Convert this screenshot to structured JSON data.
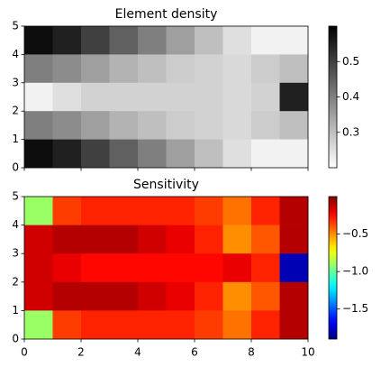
{
  "chart_data": [
    {
      "type": "heatmap",
      "title": "Element density",
      "colormap": "gray_r",
      "xlim": [
        0,
        10
      ],
      "ylim": [
        0,
        5
      ],
      "yticks": [
        0,
        1,
        2,
        3,
        4,
        5
      ],
      "clim": [
        0.2,
        0.6
      ],
      "cticks": [
        0.3,
        0.4,
        0.5
      ],
      "values": [
        [
          0.58,
          0.55,
          0.5,
          0.45,
          0.4,
          0.35,
          0.3,
          0.25,
          0.22,
          0.22
        ],
        [
          0.4,
          0.38,
          0.35,
          0.32,
          0.3,
          0.28,
          0.27,
          0.26,
          0.28,
          0.3
        ],
        [
          0.22,
          0.25,
          0.27,
          0.27,
          0.27,
          0.27,
          0.27,
          0.26,
          0.27,
          0.55
        ],
        [
          0.4,
          0.38,
          0.35,
          0.32,
          0.3,
          0.28,
          0.27,
          0.26,
          0.28,
          0.3
        ],
        [
          0.58,
          0.55,
          0.5,
          0.45,
          0.4,
          0.35,
          0.3,
          0.25,
          0.22,
          0.22
        ]
      ]
    },
    {
      "type": "heatmap",
      "title": "Sensitivity",
      "colormap": "jet",
      "xlim": [
        0,
        10
      ],
      "ylim": [
        0,
        5
      ],
      "xticks": [
        0,
        2,
        4,
        6,
        8,
        10
      ],
      "yticks": [
        0,
        1,
        2,
        3,
        4,
        5
      ],
      "clim": [
        -1.9,
        0
      ],
      "cticks": [
        {
          "value": -0.5,
          "label": "−0.5"
        },
        {
          "value": -1.0,
          "label": "−1.0"
        },
        {
          "value": -1.5,
          "label": "−1.5"
        }
      ],
      "values": [
        [
          -0.9,
          -0.35,
          -0.3,
          -0.3,
          -0.3,
          -0.3,
          -0.35,
          -0.45,
          -0.3,
          -0.1
        ],
        [
          -0.15,
          -0.1,
          -0.1,
          -0.1,
          -0.15,
          -0.2,
          -0.3,
          -0.5,
          -0.4,
          -0.1
        ],
        [
          -0.15,
          -0.2,
          -0.25,
          -0.25,
          -0.25,
          -0.25,
          -0.25,
          -0.2,
          -0.3,
          -1.8
        ],
        [
          -0.15,
          -0.1,
          -0.1,
          -0.1,
          -0.15,
          -0.2,
          -0.3,
          -0.5,
          -0.4,
          -0.1
        ],
        [
          -0.9,
          -0.35,
          -0.3,
          -0.3,
          -0.3,
          -0.3,
          -0.35,
          -0.45,
          -0.3,
          -0.1
        ]
      ]
    }
  ]
}
